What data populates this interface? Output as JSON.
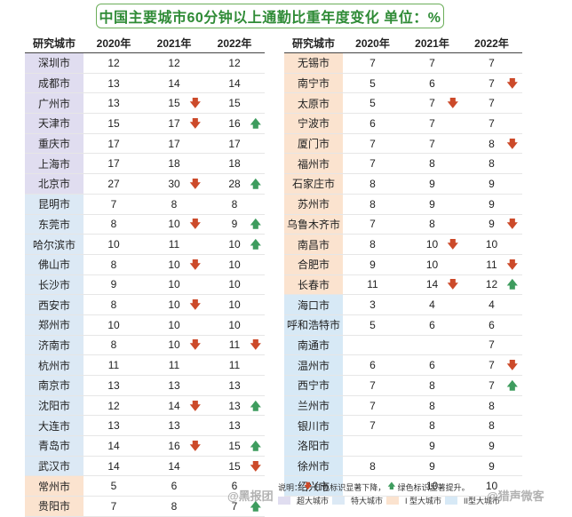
{
  "title": "中国主要城市60分钟以上通勤比重年度变化 单位：%",
  "colors": {
    "super": "#e0ddf0",
    "mega": "#dce9f5",
    "type1": "#fbe3cf",
    "type2": "#d7e9f6",
    "down": "#cc4a2a",
    "up": "#3e9c5e",
    "title": "#2f8b36"
  },
  "chart_data": {
    "type": "table",
    "columns": [
      "研究城市",
      "2020年",
      "2021年",
      "2022年"
    ],
    "left_rows": [
      {
        "city": "深圳市",
        "cat": "super",
        "v2020": "12",
        "v2021": "12",
        "a2021": "",
        "v2022": "12",
        "a2022": ""
      },
      {
        "city": "成都市",
        "cat": "super",
        "v2020": "13",
        "v2021": "14",
        "a2021": "",
        "v2022": "14",
        "a2022": ""
      },
      {
        "city": "广州市",
        "cat": "super",
        "v2020": "13",
        "v2021": "15",
        "a2021": "down",
        "v2022": "15",
        "a2022": ""
      },
      {
        "city": "天津市",
        "cat": "super",
        "v2020": "15",
        "v2021": "17",
        "a2021": "down",
        "v2022": "16",
        "a2022": "up"
      },
      {
        "city": "重庆市",
        "cat": "super",
        "v2020": "17",
        "v2021": "17",
        "a2021": "",
        "v2022": "17",
        "a2022": ""
      },
      {
        "city": "上海市",
        "cat": "super",
        "v2020": "17",
        "v2021": "18",
        "a2021": "",
        "v2022": "18",
        "a2022": ""
      },
      {
        "city": "北京市",
        "cat": "super",
        "v2020": "27",
        "v2021": "30",
        "a2021": "down",
        "v2022": "28",
        "a2022": "up"
      },
      {
        "city": "昆明市",
        "cat": "mega",
        "v2020": "7",
        "v2021": "8",
        "a2021": "",
        "v2022": "8",
        "a2022": ""
      },
      {
        "city": "东莞市",
        "cat": "mega",
        "v2020": "8",
        "v2021": "10",
        "a2021": "down",
        "v2022": "9",
        "a2022": "up"
      },
      {
        "city": "哈尔滨市",
        "cat": "mega",
        "v2020": "10",
        "v2021": "11",
        "a2021": "",
        "v2022": "10",
        "a2022": "up"
      },
      {
        "city": "佛山市",
        "cat": "mega",
        "v2020": "8",
        "v2021": "10",
        "a2021": "down",
        "v2022": "10",
        "a2022": ""
      },
      {
        "city": "长沙市",
        "cat": "mega",
        "v2020": "9",
        "v2021": "10",
        "a2021": "",
        "v2022": "10",
        "a2022": ""
      },
      {
        "city": "西安市",
        "cat": "mega",
        "v2020": "8",
        "v2021": "10",
        "a2021": "down",
        "v2022": "10",
        "a2022": ""
      },
      {
        "city": "郑州市",
        "cat": "mega",
        "v2020": "10",
        "v2021": "10",
        "a2021": "",
        "v2022": "10",
        "a2022": ""
      },
      {
        "city": "济南市",
        "cat": "mega",
        "v2020": "8",
        "v2021": "10",
        "a2021": "down",
        "v2022": "11",
        "a2022": "down"
      },
      {
        "city": "杭州市",
        "cat": "mega",
        "v2020": "11",
        "v2021": "11",
        "a2021": "",
        "v2022": "11",
        "a2022": ""
      },
      {
        "city": "南京市",
        "cat": "mega",
        "v2020": "13",
        "v2021": "13",
        "a2021": "",
        "v2022": "13",
        "a2022": ""
      },
      {
        "city": "沈阳市",
        "cat": "mega",
        "v2020": "12",
        "v2021": "14",
        "a2021": "down",
        "v2022": "13",
        "a2022": "up"
      },
      {
        "city": "大连市",
        "cat": "mega",
        "v2020": "13",
        "v2021": "13",
        "a2021": "",
        "v2022": "13",
        "a2022": ""
      },
      {
        "city": "青岛市",
        "cat": "mega",
        "v2020": "14",
        "v2021": "16",
        "a2021": "down",
        "v2022": "15",
        "a2022": "up"
      },
      {
        "city": "武汉市",
        "cat": "mega",
        "v2020": "14",
        "v2021": "14",
        "a2021": "",
        "v2022": "15",
        "a2022": "down"
      },
      {
        "city": "常州市",
        "cat": "type1",
        "v2020": "5",
        "v2021": "6",
        "a2021": "",
        "v2022": "6",
        "a2022": ""
      },
      {
        "city": "贵阳市",
        "cat": "type1",
        "v2020": "7",
        "v2021": "8",
        "a2021": "",
        "v2022": "7",
        "a2022": "up"
      }
    ],
    "right_rows": [
      {
        "city": "无锡市",
        "cat": "type1",
        "v2020": "7",
        "v2021": "7",
        "a2021": "",
        "v2022": "7",
        "a2022": ""
      },
      {
        "city": "南宁市",
        "cat": "type1",
        "v2020": "5",
        "v2021": "6",
        "a2021": "",
        "v2022": "7",
        "a2022": "down"
      },
      {
        "city": "太原市",
        "cat": "type1",
        "v2020": "5",
        "v2021": "7",
        "a2021": "down",
        "v2022": "7",
        "a2022": ""
      },
      {
        "city": "宁波市",
        "cat": "type1",
        "v2020": "6",
        "v2021": "7",
        "a2021": "",
        "v2022": "7",
        "a2022": ""
      },
      {
        "city": "厦门市",
        "cat": "type1",
        "v2020": "7",
        "v2021": "7",
        "a2021": "",
        "v2022": "8",
        "a2022": "down"
      },
      {
        "city": "福州市",
        "cat": "type1",
        "v2020": "7",
        "v2021": "8",
        "a2021": "",
        "v2022": "8",
        "a2022": ""
      },
      {
        "city": "石家庄市",
        "cat": "type1",
        "v2020": "8",
        "v2021": "9",
        "a2021": "",
        "v2022": "9",
        "a2022": ""
      },
      {
        "city": "苏州市",
        "cat": "type1",
        "v2020": "8",
        "v2021": "9",
        "a2021": "",
        "v2022": "9",
        "a2022": ""
      },
      {
        "city": "乌鲁木齐市",
        "cat": "type1",
        "v2020": "7",
        "v2021": "8",
        "a2021": "",
        "v2022": "9",
        "a2022": "down"
      },
      {
        "city": "南昌市",
        "cat": "type1",
        "v2020": "8",
        "v2021": "10",
        "a2021": "down",
        "v2022": "10",
        "a2022": ""
      },
      {
        "city": "合肥市",
        "cat": "type1",
        "v2020": "9",
        "v2021": "10",
        "a2021": "",
        "v2022": "11",
        "a2022": "down"
      },
      {
        "city": "长春市",
        "cat": "type1",
        "v2020": "11",
        "v2021": "14",
        "a2021": "down",
        "v2022": "12",
        "a2022": "up"
      },
      {
        "city": "海口市",
        "cat": "type2",
        "v2020": "3",
        "v2021": "4",
        "a2021": "",
        "v2022": "4",
        "a2022": ""
      },
      {
        "city": "呼和浩特市",
        "cat": "type2",
        "v2020": "5",
        "v2021": "6",
        "a2021": "",
        "v2022": "6",
        "a2022": ""
      },
      {
        "city": "南通市",
        "cat": "type2",
        "v2020": "",
        "v2021": "",
        "a2021": "",
        "v2022": "7",
        "a2022": ""
      },
      {
        "city": "温州市",
        "cat": "type2",
        "v2020": "6",
        "v2021": "6",
        "a2021": "",
        "v2022": "7",
        "a2022": "down"
      },
      {
        "city": "西宁市",
        "cat": "type2",
        "v2020": "7",
        "v2021": "8",
        "a2021": "",
        "v2022": "7",
        "a2022": "up"
      },
      {
        "city": "兰州市",
        "cat": "type2",
        "v2020": "7",
        "v2021": "8",
        "a2021": "",
        "v2022": "8",
        "a2022": ""
      },
      {
        "city": "银川市",
        "cat": "type2",
        "v2020": "7",
        "v2021": "8",
        "a2021": "",
        "v2022": "8",
        "a2022": ""
      },
      {
        "city": "洛阳市",
        "cat": "type2",
        "v2020": "",
        "v2021": "9",
        "a2021": "",
        "v2022": "9",
        "a2022": ""
      },
      {
        "city": "徐州市",
        "cat": "type2",
        "v2020": "8",
        "v2021": "9",
        "a2021": "",
        "v2022": "9",
        "a2022": ""
      },
      {
        "city": "绍兴市",
        "cat": "type2",
        "v2020": "",
        "v2021": "10",
        "a2021": "",
        "v2022": "10",
        "a2022": ""
      }
    ]
  },
  "legend": {
    "note_prefix": "说明：",
    "down_text": "红色标识显著下降，",
    "up_text": "绿色标识显著提升。",
    "super_label": "超大城市",
    "mega_label": "特大城市",
    "type1_label": "I 型大城市",
    "type2_label": "II型大城市"
  },
  "watermarks": [
    "@黑报团",
    "@猎声微客"
  ]
}
